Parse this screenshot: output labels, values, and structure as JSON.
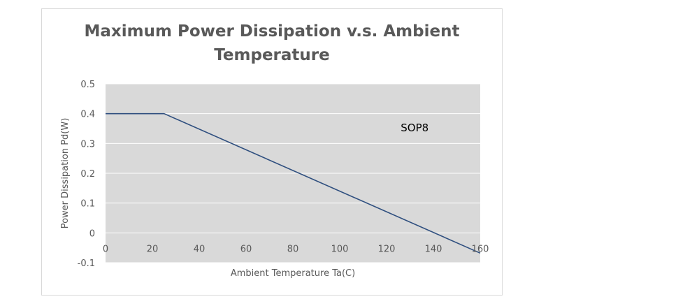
{
  "chart_data": {
    "type": "line",
    "title_lines": [
      "Maximum Power Dissipation v.s. Ambient",
      "Temperature"
    ],
    "xlabel": "Ambient Temperature Ta(C)",
    "ylabel": "Power Dissipation Pd(W)",
    "xlim": [
      0,
      160
    ],
    "ylim": [
      -0.1,
      0.5
    ],
    "x_ticks": [
      "0",
      "20",
      "40",
      "60",
      "80",
      "100",
      "120",
      "140",
      "160"
    ],
    "y_ticks": [
      "0.5",
      "0.4",
      "0.3",
      "0.2",
      "0.1",
      "0",
      "-0.1"
    ],
    "grid": true,
    "series": [
      {
        "x": [
          0,
          25,
          160
        ],
        "y": [
          0.4,
          0.4,
          -0.068
        ]
      }
    ],
    "annotations": [
      {
        "text": "SOP8",
        "x": 132,
        "y": 0.355
      }
    ],
    "colors": {
      "plot_background": "#d9d9d9",
      "gridline": "#ffffff",
      "series_line": "#2f4f7f",
      "text": "#595959"
    }
  }
}
